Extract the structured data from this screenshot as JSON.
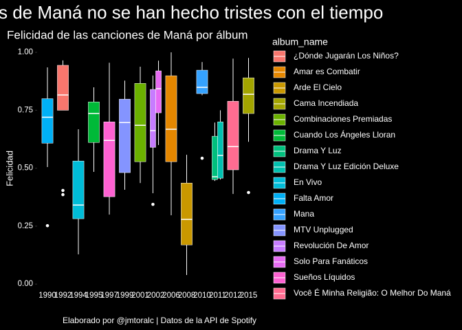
{
  "chart_data": {
    "type": "box",
    "title": "s de Maná no se han hecho tristes con el tiempo",
    "subtitle": "Felicidad de las canciones de Maná por álbum",
    "y_label": "Felicidad",
    "caption": "Elaborado por @jmtoralc | Datos de la API de Spotify",
    "legend_title": "album_name",
    "categories": [
      "1990",
      "1992",
      "1994",
      "1995",
      "1997",
      "1999",
      "2001",
      "2002",
      "2006",
      "2008",
      "2010",
      "2011",
      "2012",
      "2015"
    ],
    "ylim": [
      -0.035,
      1.03
    ],
    "yticks": [
      {
        "value": 0,
        "label": "0.00"
      },
      {
        "value": 0.25,
        "label": "0.25"
      },
      {
        "value": 0.5,
        "label": "0.50"
      },
      {
        "value": 0.75,
        "label": "0.75"
      },
      {
        "value": 1,
        "label": "1.00"
      }
    ],
    "series": [
      {
        "name": "¿Dónde Jugarán Los Niños?",
        "color": "#F8766D",
        "year": "1992",
        "values": {
          "min": 0.75,
          "q1": 0.75,
          "median": 0.816,
          "q3": 0.944,
          "max": 0.965,
          "outliers": [
            0.404,
            0.386
          ]
        }
      },
      {
        "name": "Amar es Combatir",
        "color": "#E58700",
        "year": "2006",
        "values": {
          "min": 0.297,
          "q1": 0.528,
          "median": 0.668,
          "q3": 0.899,
          "max": 1.0,
          "outliers": []
        }
      },
      {
        "name": "Arde El Cielo",
        "color": "#C99800",
        "year": "2008",
        "values": {
          "min": 0.039,
          "q1": 0.169,
          "median": 0.279,
          "q3": 0.436,
          "max": 0.558,
          "outliers": []
        }
      },
      {
        "name": "Cama Incendiada",
        "color": "#A3A500",
        "year": "2015",
        "values": {
          "min": 0.614,
          "q1": 0.736,
          "median": 0.819,
          "q3": 0.89,
          "max": 0.976,
          "outliers": [
            0.395
          ]
        }
      },
      {
        "name": "Combinaciones Premiadas",
        "color": "#6BB100",
        "year": "2001",
        "values": {
          "min": 0.436,
          "q1": 0.528,
          "median": 0.685,
          "q3": 0.866,
          "max": 0.938,
          "outliers": []
        }
      },
      {
        "name": "Cuando Los Ángeles Lloran",
        "color": "#00BA38",
        "year": "1995",
        "values": {
          "min": 0.484,
          "q1": 0.611,
          "median": 0.736,
          "q3": 0.786,
          "max": 0.849,
          "outliers": []
        }
      },
      {
        "name": "Drama Y Luz",
        "color": "#00BF7D",
        "year": "2011",
        "values": {
          "min": 0.445,
          "q1": 0.451,
          "median": 0.463,
          "q3": 0.638,
          "max": 0.697,
          "outliers": []
        }
      },
      {
        "name": "Drama Y Luz Edición Deluxe",
        "color": "#00C0AF",
        "year": "2011",
        "values": {
          "min": 0.451,
          "q1": 0.457,
          "median": 0.555,
          "q3": 0.7,
          "max": 0.75,
          "outliers": []
        }
      },
      {
        "name": "En Vivo",
        "color": "#00BCD8",
        "year": "1994",
        "values": {
          "min": 0.128,
          "q1": 0.282,
          "median": 0.341,
          "q3": 0.531,
          "max": 0.668,
          "outliers": []
        }
      },
      {
        "name": "Falta Amor",
        "color": "#00B0F6",
        "year": "1990",
        "values": {
          "min": 0.505,
          "q1": 0.608,
          "median": 0.72,
          "q3": 0.8,
          "max": 0.935,
          "outliers": [
            0.252
          ]
        }
      },
      {
        "name": "Mana",
        "color": "#35A2FF",
        "year": "2010",
        "values": {
          "min": 0.815,
          "q1": 0.822,
          "median": 0.849,
          "q3": 0.923,
          "max": 0.958,
          "outliers": [
            0.543
          ]
        }
      },
      {
        "name": "MTV Unplugged",
        "color": "#8494FF",
        "year": "1999",
        "values": {
          "min": 0.407,
          "q1": 0.481,
          "median": 0.697,
          "q3": 0.798,
          "max": 0.878,
          "outliers": []
        }
      },
      {
        "name": "Revolución De Amor",
        "color": "#C77CFF",
        "year": "2002",
        "values": {
          "min": 0.392,
          "q1": 0.59,
          "median": 0.662,
          "q3": 0.84,
          "max": 0.9,
          "outliers": [
            0.344
          ]
        }
      },
      {
        "name": "Solo Para Fanáticos",
        "color": "#E76BF3",
        "year": "2002",
        "values": {
          "min": 0.6,
          "q1": 0.739,
          "median": 0.843,
          "q3": 0.92,
          "max": 0.964,
          "outliers": []
        }
      },
      {
        "name": "Sueños Líquidos",
        "color": "#FD61D1",
        "year": "1997",
        "values": {
          "min": 0.3,
          "q1": 0.377,
          "median": 0.62,
          "q3": 0.7,
          "max": 0.955,
          "outliers": []
        }
      },
      {
        "name": "Você É Minha Religião: O Melhor Do Maná",
        "color": "#FF6C91",
        "year": "2012",
        "values": {
          "min": 0.389,
          "q1": 0.493,
          "median": 0.593,
          "q3": 0.789,
          "max": 0.973,
          "outliers": []
        }
      }
    ]
  }
}
